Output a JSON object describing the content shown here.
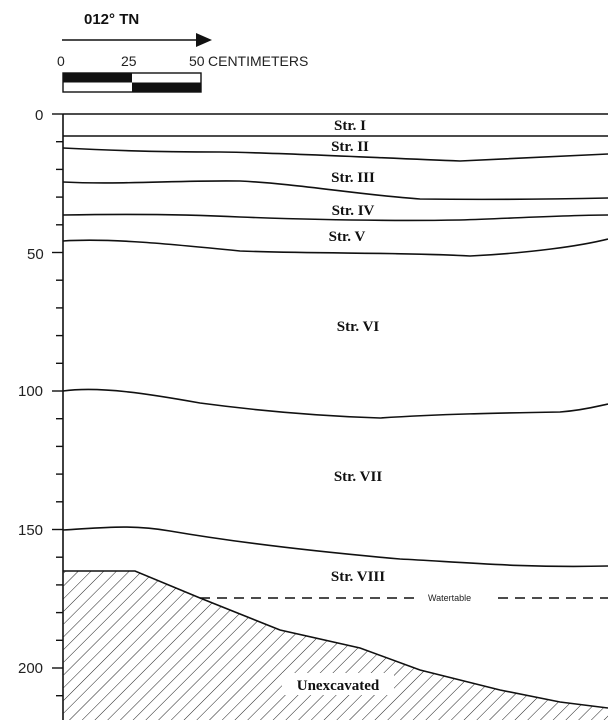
{
  "north_arrow": {
    "bearing_label": "012° TN"
  },
  "scale_bar": {
    "labels": [
      "0",
      "25",
      "50"
    ],
    "unit_label": "CENTIMETERS"
  },
  "depth_axis": {
    "ticks": [
      0,
      50,
      100,
      150,
      200
    ],
    "tick_labels": [
      "0",
      "50",
      "100",
      "150",
      "200"
    ]
  },
  "strata": [
    {
      "label": "Str. I"
    },
    {
      "label": "Str. II"
    },
    {
      "label": "Str. III"
    },
    {
      "label": "Str. IV"
    },
    {
      "label": "Str. V"
    },
    {
      "label": "Str. VI"
    },
    {
      "label": "Str. VII"
    },
    {
      "label": "Str. VIII"
    }
  ],
  "watertable": {
    "label": "Watertable"
  },
  "unexcavated": {
    "label": "Unexcavated"
  }
}
